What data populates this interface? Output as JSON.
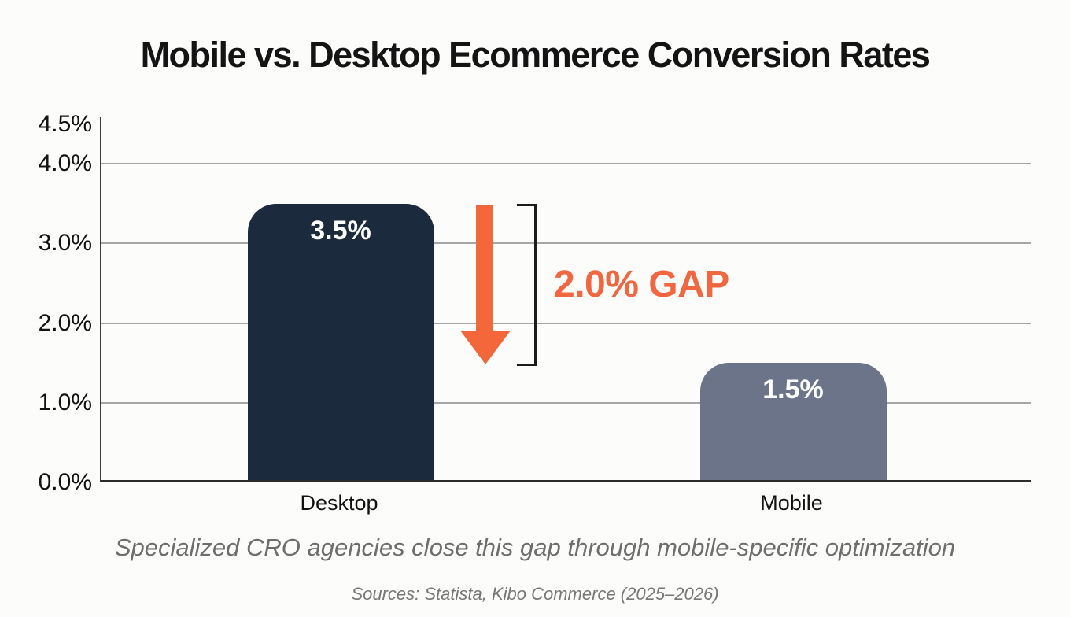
{
  "title": "Mobile vs. Desktop Ecommerce Conversion Rates",
  "subtitle": "Specialized CRO agencies close this gap through mobile-specific optimization",
  "source": "Sources: Statista, Kibo Commerce (2025–2026)",
  "annotation": {
    "gap_label": "2.0% GAP",
    "arrow_color": "#f4673a",
    "text_color": "#f26740",
    "bracket_color": "#1c1c1c"
  },
  "colors": {
    "gridline": "#a6a6a6",
    "axis": "#2c2c2c",
    "background": "#fcfcfb",
    "title_text": "#141414",
    "bar_value_text": "#ffffff"
  },
  "chart_data": {
    "type": "bar",
    "title": "Mobile vs. Desktop Ecommerce Conversion Rates",
    "categories": [
      "Desktop",
      "Mobile"
    ],
    "values": [
      3.5,
      1.5
    ],
    "value_labels": [
      "3.5%",
      "1.5%"
    ],
    "bar_colors": [
      "#1c2a3e",
      "#6b7488"
    ],
    "xlabel": "",
    "ylabel": "",
    "ylim": [
      0,
      4.5
    ],
    "yticks": [
      {
        "value": 0,
        "label": "0.0%"
      },
      {
        "value": 1,
        "label": "1.0%"
      },
      {
        "value": 2,
        "label": "2.0%"
      },
      {
        "value": 3,
        "label": "3.0%"
      },
      {
        "value": 4,
        "label": "4.0%"
      },
      {
        "value": 4.5,
        "label": "4.5%"
      }
    ],
    "grid": "horizontal",
    "legend": "none",
    "annotations": [
      {
        "text": "2.0% GAP",
        "color": "#f26740",
        "type": "gap-arrow-between-bars"
      }
    ]
  }
}
